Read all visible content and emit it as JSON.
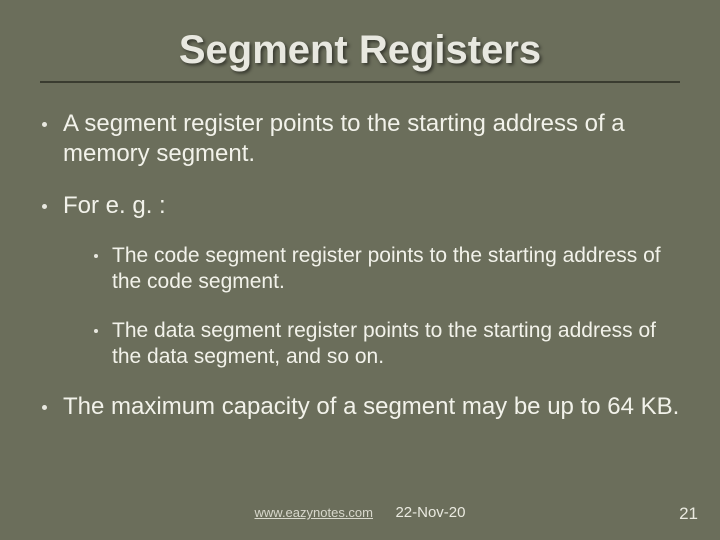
{
  "slide": {
    "background_color": "#6b6e5b",
    "text_color": "#f2f2ea",
    "title_color": "#e8e8e0",
    "underline_color": "#3a3c30",
    "title": "Segment Registers",
    "title_fontsize": 40,
    "l1_fontsize": 24,
    "l2_fontsize": 21,
    "bullets": [
      {
        "level": 1,
        "text": "A segment register points to the starting address of a memory segment."
      },
      {
        "level": 1,
        "text": "For e. g. :"
      },
      {
        "level": 2,
        "text": "The code segment register points to the starting address of the code segment."
      },
      {
        "level": 2,
        "text": "The data segment register points to the starting address of the data segment, and so on."
      },
      {
        "level": 1,
        "text": "The maximum capacity of a segment may be up to 64 KB."
      }
    ],
    "footer": {
      "site": "www.eazynotes.com",
      "date": "22-Nov-20",
      "page_number": "21"
    }
  }
}
